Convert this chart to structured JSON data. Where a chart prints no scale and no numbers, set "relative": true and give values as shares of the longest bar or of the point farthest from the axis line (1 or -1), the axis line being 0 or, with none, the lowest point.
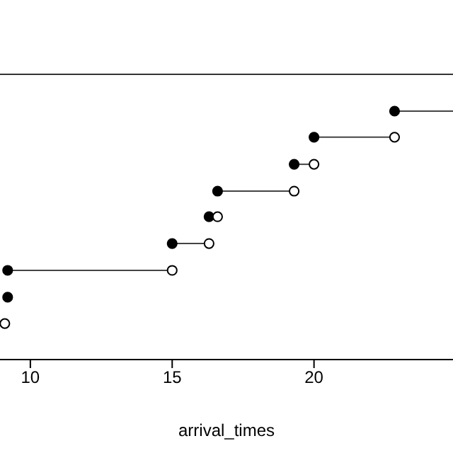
{
  "chart_data": {
    "type": "scatter",
    "xlabel": "arrival_times",
    "relative": true,
    "series": [
      {
        "type": "line",
        "color": "#444444",
        "x": [
          22.84,
          24.9
        ],
        "values": [
          1,
          1
        ]
      },
      {
        "type": "line",
        "color": "#444444",
        "x": [
          20.0,
          22.84
        ],
        "values": [
          0.895,
          0.895
        ]
      },
      {
        "type": "line",
        "color": "#444444",
        "x": [
          19.3,
          20.0
        ],
        "values": [
          0.786,
          0.786
        ]
      },
      {
        "type": "line",
        "color": "#444444",
        "x": [
          16.6,
          19.3
        ],
        "values": [
          0.678,
          0.678
        ]
      },
      {
        "type": "line",
        "color": "#444444",
        "x": [
          15.0,
          16.3
        ],
        "values": [
          0.467,
          0.467
        ]
      },
      {
        "type": "line",
        "color": "#444444",
        "x": [
          9.2,
          15.0
        ],
        "values": [
          0.359,
          0.359
        ]
      },
      {
        "type": "scatter",
        "marker": "circle",
        "color": "#000000",
        "x": [
          22.84,
          20.0,
          19.3,
          16.6,
          16.3,
          15.0,
          9.2,
          9.2
        ],
        "values": [
          1,
          0.895,
          0.786,
          0.678,
          0.575,
          0.467,
          0.359,
          0.251
        ]
      },
      {
        "type": "scatter",
        "marker": "circle",
        "color": "#000000",
        "x": [
          22.84,
          20.0,
          19.3,
          16.6,
          16.3,
          15.0,
          9.1
        ],
        "values": [
          0.895,
          0.786,
          0.678,
          0.575,
          0.467,
          0.359,
          0.145
        ]
      }
    ],
    "xlim": [
      8.93,
      24.9
    ],
    "xticks": [
      10,
      15,
      20
    ],
    "tick_labels": "x"
  }
}
